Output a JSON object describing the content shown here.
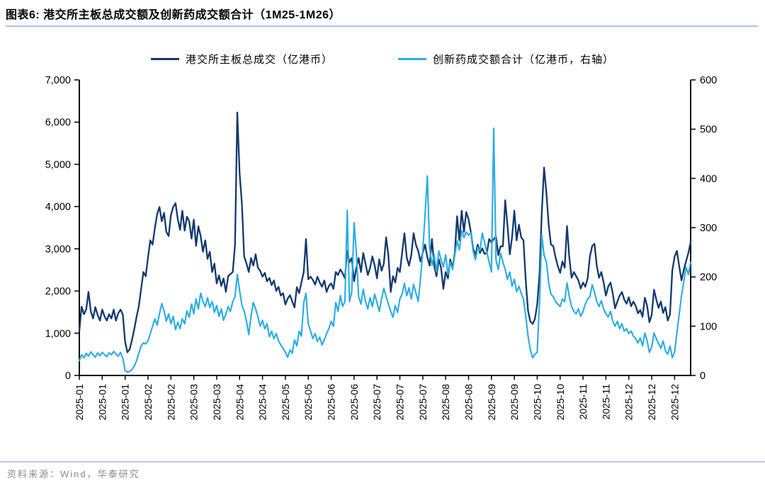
{
  "figure": {
    "title": "图表6:  港交所主板总成交额及创新药成交额合计（1M25-1M26）"
  },
  "legend": [
    {
      "label": "港交所主板总成交（亿港币）",
      "color": "#12396e"
    },
    {
      "label": "创新药成交额合计（亿港币，右轴）",
      "color": "#29ace4"
    }
  ],
  "source": {
    "text": "资料来源：Wind，华泰研究"
  },
  "chart_data": {
    "type": "line",
    "title": "港交所主板总成交额及创新药成交额合计（1M25-1M26）",
    "grid": false,
    "legend_position": "top",
    "left_axis": {
      "min": 0,
      "max": 7000,
      "ticks": [
        "0",
        "1,000",
        "2,000",
        "3,000",
        "4,000",
        "5,000",
        "6,000",
        "7,000"
      ]
    },
    "right_axis": {
      "min": 0,
      "max": 600,
      "ticks": [
        "0",
        "100",
        "200",
        "300",
        "400",
        "500",
        "600"
      ]
    },
    "x_tick_labels": [
      "2025-01",
      "2025-01",
      "2025-01",
      "2025-02",
      "2025-02",
      "2025-03",
      "2025-03",
      "2025-04",
      "2025-04",
      "2025-05",
      "2025-05",
      "2025-06",
      "2025-06",
      "2025-07",
      "2025-07",
      "2025-07",
      "2025-08",
      "2025-08",
      "2025-09",
      "2025-09",
      "2025-10",
      "2025-10",
      "2025-11",
      "2025-11",
      "2025-12",
      "2025-12",
      "2025-12"
    ],
    "x_tick_every_n_points": 10,
    "series": [
      {
        "name": "港交所主板总成交（亿港币）",
        "axis": "left",
        "color": "#12396e",
        "values": [
          1050,
          1630,
          1450,
          1560,
          1980,
          1520,
          1350,
          1620,
          1430,
          1300,
          1560,
          1400,
          1300,
          1450,
          1350,
          1560,
          1300,
          1470,
          1560,
          1440,
          800,
          550,
          620,
          840,
          1100,
          1390,
          1640,
          2060,
          2450,
          2350,
          2800,
          3200,
          3100,
          3500,
          3820,
          3990,
          3650,
          3850,
          3400,
          3300,
          3800,
          3990,
          4080,
          3700,
          3450,
          3900,
          3430,
          3760,
          3650,
          3240,
          3690,
          3070,
          3530,
          3300,
          2930,
          3200,
          2760,
          2930,
          2450,
          2650,
          2180,
          2370,
          2120,
          2300,
          1980,
          2350,
          2400,
          2450,
          3100,
          6230,
          4780,
          4070,
          2815,
          2650,
          2450,
          2780,
          2600,
          2870,
          2550,
          2480,
          2340,
          2430,
          2230,
          2310,
          2140,
          2250,
          2000,
          2100,
          1890,
          1950,
          1680,
          1820,
          1900,
          1750,
          1610,
          2090,
          1950,
          2200,
          2450,
          3230,
          2280,
          2340,
          2260,
          2150,
          2340,
          2200,
          2100,
          2250,
          1980,
          2120,
          2180,
          2050,
          2450,
          2380,
          2510,
          2420,
          2300,
          2950,
          2680,
          2780,
          2230,
          2550,
          2780,
          2450,
          2900,
          2650,
          2380,
          2550,
          2820,
          2600,
          2300,
          2750,
          2480,
          2650,
          3270,
          2850,
          1980,
          2350,
          2200,
          2550,
          2450,
          2900,
          3370,
          2800,
          2600,
          2850,
          3370,
          3100,
          2950,
          2700,
          2900,
          3100,
          2800,
          2600,
          3230,
          2600,
          2350,
          2750,
          2550,
          2050,
          2450,
          2300,
          2750,
          2550,
          2900,
          3770,
          3200,
          3900,
          3400,
          3870,
          3700,
          3400,
          3010,
          2850,
          3100,
          2900,
          3010,
          2880,
          2900,
          3230,
          3150,
          3230,
          3280,
          2850,
          3060,
          3060,
          4150,
          3570,
          2870,
          3270,
          3900,
          3200,
          3570,
          3270,
          3200,
          2230,
          1530,
          1280,
          1220,
          1340,
          1680,
          2400,
          3870,
          4925,
          4320,
          3570,
          3100,
          3065,
          2800,
          2590,
          2430,
          2700,
          2550,
          3540,
          2800,
          2315,
          2450,
          2350,
          2250,
          2060,
          2200,
          2100,
          2300,
          2815,
          3065,
          3120,
          2600,
          2315,
          2450,
          2200,
          1890,
          2100,
          2200,
          1940,
          1590,
          1750,
          1890,
          1975,
          1800,
          1700,
          1850,
          1640,
          1750,
          1650,
          1470,
          1550,
          1390,
          1840,
          1650,
          1260,
          1440,
          2030,
          1800,
          1600,
          1750,
          1480,
          1620,
          1300,
          1450,
          2480,
          2815,
          2950,
          2600,
          2250,
          2500,
          2700,
          2900,
          3150
        ]
      },
      {
        "name": "创新药成交额合计（亿港币，右轴）",
        "axis": "right",
        "color": "#29ace4",
        "values": [
          30,
          42,
          36,
          45,
          39,
          48,
          42,
          37,
          46,
          40,
          47,
          42,
          38,
          46,
          42,
          49,
          43,
          39,
          47,
          35,
          10,
          7,
          8,
          12,
          19,
          30,
          45,
          60,
          66,
          64,
          70,
          85,
          100,
          115,
          102,
          125,
          146,
          131,
          110,
          125,
          105,
          120,
          93,
          108,
          95,
          115,
          105,
          131,
          118,
          145,
          125,
          155,
          135,
          167,
          150,
          140,
          158,
          138,
          150,
          128,
          142,
          120,
          135,
          112,
          125,
          140,
          130,
          150,
          160,
          205,
          172,
          143,
          131,
          110,
          83,
          120,
          148,
          135,
          119,
          100,
          112,
          95,
          105,
          79,
          90,
          75,
          85,
          70,
          62,
          55,
          47,
          37,
          52,
          45,
          72,
          60,
          90,
          80,
          148,
          167,
          105,
          90,
          75,
          85,
          69,
          78,
          62,
          72,
          85,
          95,
          110,
          100,
          148,
          130,
          162,
          140,
          150,
          335,
          150,
          170,
          310,
          248,
          160,
          145,
          175,
          150,
          135,
          158,
          140,
          165,
          148,
          130,
          155,
          177,
          160,
          145,
          130,
          118,
          142,
          128,
          155,
          165,
          187,
          162,
          178,
          155,
          185,
          168,
          150,
          195,
          251,
          327,
          405,
          260,
          224,
          245,
          210,
          253,
          235,
          220,
          245,
          205,
          230,
          215,
          245,
          273,
          255,
          294,
          280,
          291,
          285,
          290,
          253,
          235,
          260,
          253,
          289,
          270,
          250,
          230,
          210,
          502,
          234,
          215,
          248,
          230,
          215,
          195,
          210,
          181,
          195,
          170,
          181,
          167,
          155,
          120,
          80,
          52,
          36,
          43,
          47,
          150,
          285,
          244,
          230,
          188,
          165,
          160,
          150,
          145,
          140,
          155,
          150,
          188,
          160,
          140,
          130,
          125,
          135,
          120,
          130,
          145,
          155,
          160,
          184,
          170,
          150,
          140,
          152,
          135,
          125,
          119,
          130,
          110,
          100,
          110,
          95,
          105,
          90,
          95,
          85,
          90,
          80,
          75,
          66,
          76,
          60,
          86,
          70,
          47,
          58,
          86,
          75,
          65,
          55,
          70,
          50,
          43,
          60,
          36,
          48,
          86,
          123,
          162,
          190,
          220,
          205,
          230
        ]
      }
    ]
  }
}
